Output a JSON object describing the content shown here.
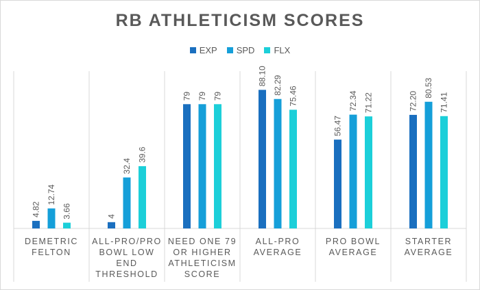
{
  "chart_data": {
    "type": "bar",
    "title": "RB ATHLETICISM SCORES",
    "categories": [
      [
        "DEMETRIC",
        "FELTON"
      ],
      [
        "ALL-PRO/PRO",
        "BOWL LOW",
        "END",
        "THRESHOLD"
      ],
      [
        "NEED ONE 79",
        "OR HIGHER",
        "ATHLETICISM",
        "SCORE"
      ],
      [
        "ALL-PRO",
        "AVERAGE"
      ],
      [
        "PRO BOWL",
        "AVERAGE"
      ],
      [
        "STARTER",
        "AVERAGE"
      ]
    ],
    "series": [
      {
        "name": "EXP",
        "color": "#1a6fbf",
        "values": [
          4.82,
          4,
          79,
          88.1,
          56.47,
          72.2
        ],
        "labels": [
          "4.82",
          "4",
          "79",
          "88.10",
          "56.47",
          "72.20"
        ]
      },
      {
        "name": "SPD",
        "color": "#159fd9",
        "values": [
          12.74,
          32.4,
          79,
          82.29,
          72.34,
          80.53
        ],
        "labels": [
          "12.74",
          "32.4",
          "79",
          "82.29",
          "72.34",
          "80.53"
        ]
      },
      {
        "name": "FLX",
        "color": "#1ccfd9",
        "values": [
          3.66,
          39.6,
          79,
          75.46,
          71.22,
          71.41
        ],
        "labels": [
          "3.66",
          "39.6",
          "79",
          "75.46",
          "71.22",
          "71.41"
        ]
      }
    ],
    "ylim": [
      0,
      100
    ],
    "xlabel": "",
    "ylabel": "",
    "legend": "top-center",
    "grid": false
  }
}
